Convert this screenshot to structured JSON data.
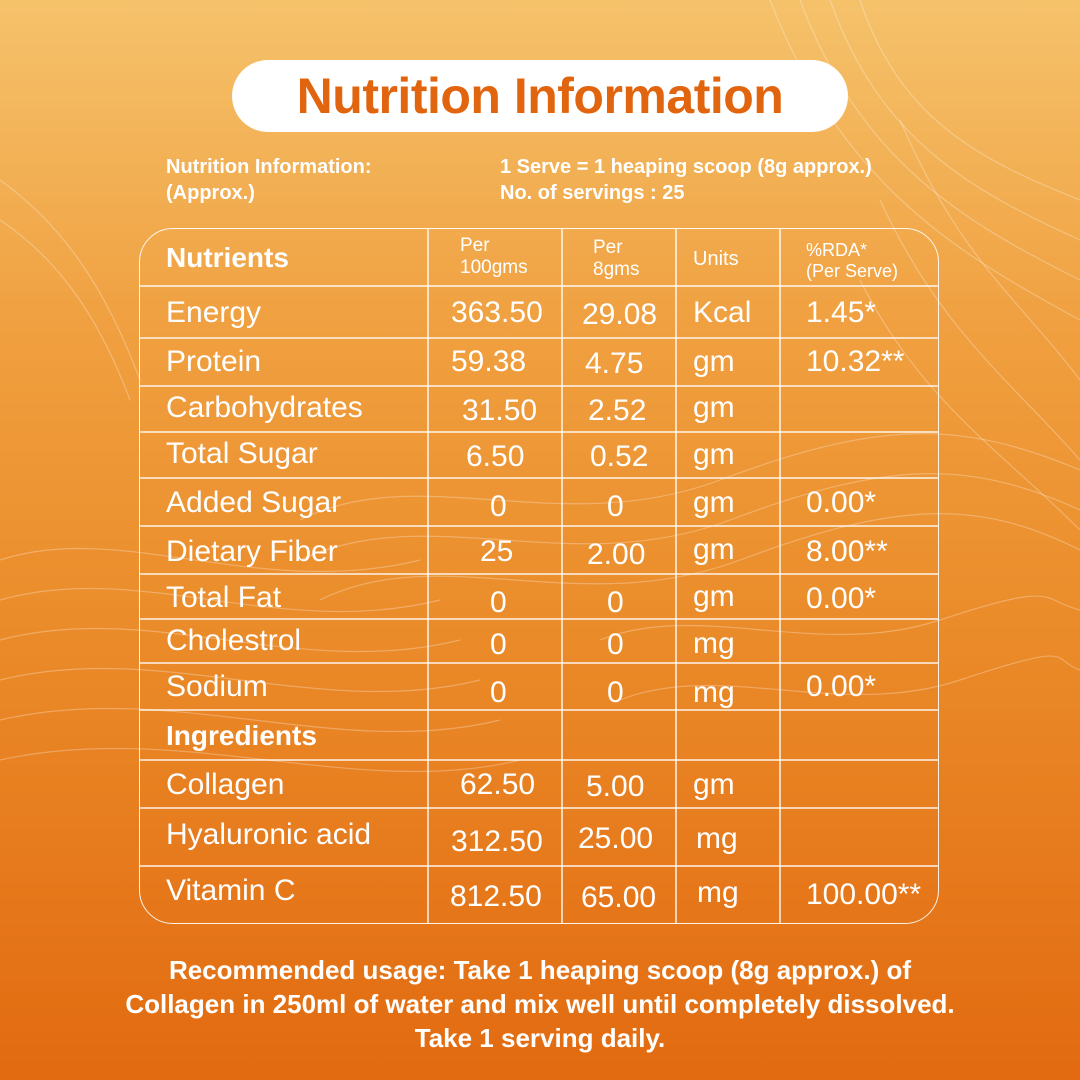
{
  "title": "Nutrition Information",
  "info": {
    "left_line1": "Nutrition Information:",
    "left_line2": "(Approx.)",
    "right_line1": "1 Serve = 1 heaping scoop (8g approx.)",
    "right_line2": "No. of servings : 25"
  },
  "table": {
    "headers": {
      "nutrients": "Nutrients",
      "per100_line1": "Per",
      "per100_line2": "100gms",
      "per8_line1": "Per",
      "per8_line2": "8gms",
      "units": "Units",
      "rda_line1": "%RDA*",
      "rda_line2": "(Per Serve)"
    },
    "rows": [
      {
        "name": "Energy",
        "per100": "363.50",
        "per8": "29.08",
        "unit": "Kcal",
        "rda": "1.45*"
      },
      {
        "name": "Protein",
        "per100": "59.38",
        "per8": "4.75",
        "unit": "gm",
        "rda": "10.32**"
      },
      {
        "name": "Carbohydrates",
        "per100": "31.50",
        "per8": "2.52",
        "unit": "gm",
        "rda": ""
      },
      {
        "name": "Total Sugar",
        "per100": "6.50",
        "per8": "0.52",
        "unit": "gm",
        "rda": ""
      },
      {
        "name": "Added Sugar",
        "per100": "0",
        "per8": "0",
        "unit": "gm",
        "rda": "0.00*"
      },
      {
        "name": "Dietary Fiber",
        "per100": "25",
        "per8": "2.00",
        "unit": "gm",
        "rda": "8.00**"
      },
      {
        "name": "Total Fat",
        "per100": "0",
        "per8": "0",
        "unit": "gm",
        "rda": "0.00*"
      },
      {
        "name": "Cholestrol",
        "per100": "0",
        "per8": "0",
        "unit": "mg",
        "rda": ""
      },
      {
        "name": "Sodium",
        "per100": "0",
        "per8": "0",
        "unit": "mg",
        "rda": "0.00*"
      }
    ],
    "ingredients_label": "Ingredients",
    "ingredients": [
      {
        "name": "Collagen",
        "per100": "62.50",
        "per8": "5.00",
        "unit": "gm",
        "rda": ""
      },
      {
        "name": "Hyaluronic acid",
        "per100": "312.50",
        "per8": "25.00",
        "unit": "mg",
        "rda": ""
      },
      {
        "name": "Vitamin C",
        "per100": "812.50",
        "per8": "65.00",
        "unit": "mg",
        "rda": "100.00**"
      }
    ]
  },
  "footer": {
    "line1": "Recommended usage:  Take 1 heaping scoop (8g approx.) of",
    "line2": "Collagen in 250ml of water and mix well until completely dissolved.",
    "line3": "Take 1 serving daily."
  },
  "colors": {
    "accent": "#e0650e",
    "bg_top": "#f5c26b",
    "bg_bottom": "#e26a10"
  }
}
